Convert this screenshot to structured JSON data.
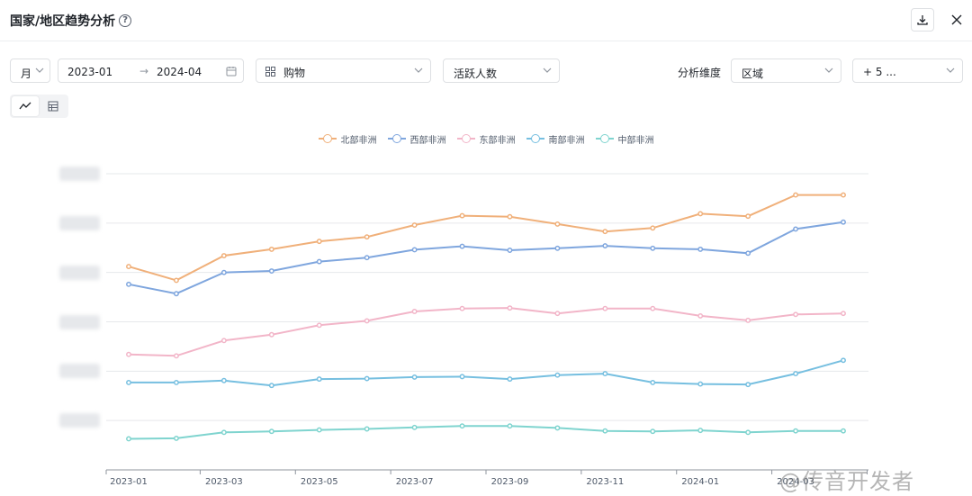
{
  "header": {
    "title": "国家/地区趋势分析",
    "help_icon": "help-circle-icon",
    "download_icon": "download-icon",
    "close_icon": "close-icon"
  },
  "filters": {
    "granularity": "月",
    "date_start": "2023-01",
    "date_arrow": "→",
    "date_end": "2024-04",
    "category_icon": "grid-icon",
    "category": "购物",
    "metric": "活跃人数",
    "dimension_label": "分析维度",
    "dimension": "区域",
    "more": "+ 5 ..."
  },
  "view_toggle": {
    "line_icon": "line-chart-icon",
    "table_icon": "table-icon",
    "active": "line"
  },
  "watermark": "@传音开发者",
  "chart_data": {
    "type": "line",
    "x": [
      "2023-01",
      "2023-02",
      "2023-03",
      "2023-04",
      "2023-05",
      "2023-06",
      "2023-07",
      "2023-08",
      "2023-09",
      "2023-10",
      "2023-11",
      "2023-12",
      "2024-01",
      "2024-02",
      "2024-03",
      "2024-04"
    ],
    "xtick_labels": [
      "2023-01",
      "2023-03",
      "2023-05",
      "2023-07",
      "2023-09",
      "2023-11",
      "2024-01",
      "2024-03"
    ],
    "ylim": [
      0,
      6
    ],
    "grid": true,
    "legend": "top-center",
    "series": [
      {
        "name": "北部非洲",
        "color": "#f0b07a",
        "values": [
          4.12,
          3.84,
          4.34,
          4.47,
          4.63,
          4.72,
          4.96,
          5.15,
          5.13,
          4.98,
          4.83,
          4.9,
          5.19,
          5.14,
          5.57,
          5.57
        ]
      },
      {
        "name": "西部非洲",
        "color": "#7fa6de",
        "values": [
          3.76,
          3.57,
          4.0,
          4.03,
          4.22,
          4.3,
          4.46,
          4.53,
          4.45,
          4.49,
          4.54,
          4.49,
          4.47,
          4.39,
          4.88,
          5.02
        ]
      },
      {
        "name": "东部非洲",
        "color": "#f2b5c8",
        "values": [
          2.34,
          2.31,
          2.62,
          2.74,
          2.93,
          3.02,
          3.21,
          3.27,
          3.28,
          3.17,
          3.27,
          3.27,
          3.12,
          3.03,
          3.15,
          3.17
        ]
      },
      {
        "name": "南部非洲",
        "color": "#76bfe0",
        "values": [
          1.77,
          1.77,
          1.81,
          1.71,
          1.84,
          1.85,
          1.88,
          1.89,
          1.84,
          1.92,
          1.95,
          1.77,
          1.74,
          1.73,
          1.95,
          2.22
        ]
      },
      {
        "name": "中部非洲",
        "color": "#7fd4cf",
        "values": [
          0.63,
          0.64,
          0.76,
          0.78,
          0.81,
          0.83,
          0.86,
          0.89,
          0.89,
          0.85,
          0.79,
          0.78,
          0.8,
          0.76,
          0.79,
          0.79
        ]
      }
    ]
  }
}
